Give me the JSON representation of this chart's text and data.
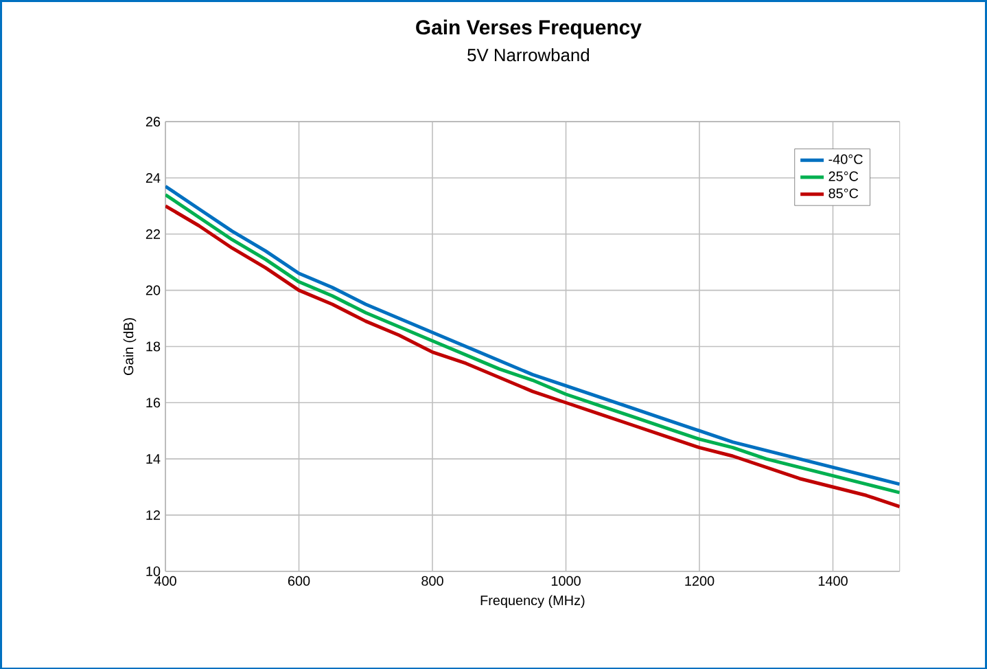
{
  "chart_data": {
    "type": "line",
    "title": "Gain Verses Frequency",
    "subtitle": "5V Narrowband",
    "xlabel": "Frequency (MHz)",
    "ylabel": "Gain (dB)",
    "x": [
      400,
      450,
      500,
      550,
      600,
      650,
      700,
      750,
      800,
      850,
      900,
      950,
      1000,
      1050,
      1100,
      1150,
      1200,
      1250,
      1300,
      1350,
      1400,
      1450,
      1500
    ],
    "series": [
      {
        "name": "-40°C",
        "color": "#0070c0",
        "values": [
          23.7,
          22.9,
          22.1,
          21.4,
          20.6,
          20.1,
          19.5,
          19.0,
          18.5,
          18.0,
          17.5,
          17.0,
          16.6,
          16.2,
          15.8,
          15.4,
          15.0,
          14.6,
          14.3,
          14.0,
          13.7,
          13.4,
          13.1
        ]
      },
      {
        "name": "25°C",
        "color": "#00b050",
        "values": [
          23.4,
          22.6,
          21.8,
          21.1,
          20.3,
          19.8,
          19.2,
          18.7,
          18.2,
          17.7,
          17.2,
          16.8,
          16.3,
          15.9,
          15.5,
          15.1,
          14.7,
          14.4,
          14.0,
          13.7,
          13.4,
          13.1,
          12.8
        ]
      },
      {
        "name": "85°C",
        "color": "#c00000",
        "values": [
          23.0,
          22.3,
          21.5,
          20.8,
          20.0,
          19.5,
          18.9,
          18.4,
          17.8,
          17.4,
          16.9,
          16.4,
          16.0,
          15.6,
          15.2,
          14.8,
          14.4,
          14.1,
          13.7,
          13.3,
          13.0,
          12.7,
          12.3
        ]
      }
    ],
    "xlim": [
      400,
      1500
    ],
    "ylim": [
      10,
      26
    ],
    "xticks": [
      400,
      600,
      800,
      1000,
      1200,
      1400
    ],
    "yticks": [
      10,
      12,
      14,
      16,
      18,
      20,
      22,
      24,
      26
    ],
    "grid": true,
    "legend": "top right",
    "marker": "none",
    "line_style": "solid"
  }
}
